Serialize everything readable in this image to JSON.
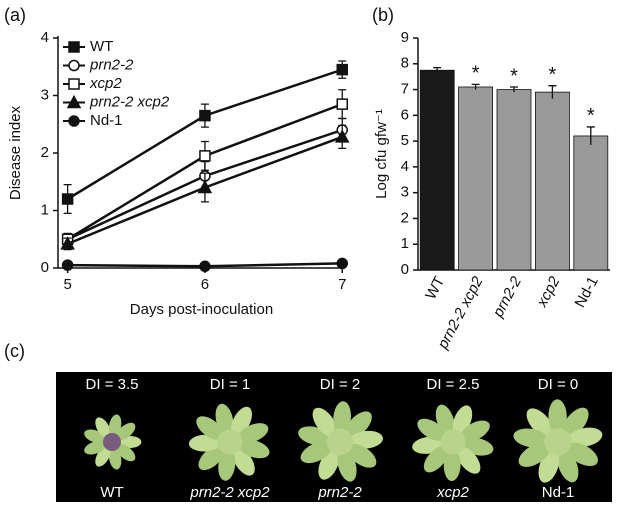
{
  "chart_data": [
    {
      "type": "line",
      "panel_label": "(a)",
      "x_label": "Days post-inoculation",
      "y_label": "Disease index",
      "x": [
        5,
        6,
        7
      ],
      "xlim": [
        4.93,
        7.02
      ],
      "xticks": [
        5,
        6,
        7
      ],
      "ylim": [
        0,
        4
      ],
      "yticks": [
        0,
        1,
        2,
        3,
        4
      ],
      "legend": "top-left",
      "series": [
        {
          "name": "WT",
          "italic": false,
          "marker": "square",
          "filled": true,
          "color": "#111111",
          "values": [
            1.2,
            2.65,
            3.45
          ],
          "errors": [
            0.25,
            0.2,
            0.15
          ]
        },
        {
          "name": "prn2-2",
          "italic": true,
          "marker": "circle",
          "filled": false,
          "color": "#111111",
          "values": [
            0.5,
            1.6,
            2.4
          ],
          "errors": [
            0.1,
            0.25,
            0.2
          ]
        },
        {
          "name": "xcp2",
          "italic": true,
          "marker": "square",
          "filled": false,
          "color": "#111111",
          "values": [
            0.5,
            1.95,
            2.85
          ],
          "errors": [
            0.1,
            0.25,
            0.25
          ]
        },
        {
          "name": "prn2-2 xcp2",
          "italic": true,
          "marker": "triangle",
          "filled": true,
          "color": "#111111",
          "values": [
            0.42,
            1.4,
            2.28
          ],
          "errors": [
            0.1,
            0.25,
            0.2
          ]
        },
        {
          "name": "Nd-1",
          "italic": false,
          "marker": "circle",
          "filled": true,
          "color": "#111111",
          "values": [
            0.05,
            0.03,
            0.08
          ],
          "errors": [
            0.03,
            0.03,
            0.03
          ]
        }
      ]
    },
    {
      "type": "bar",
      "panel_label": "(b)",
      "y_label": "Log cfu gfw⁻¹",
      "categories": [
        "WT",
        "prn2-2 xcp2",
        "prn2-2",
        "xcp2",
        "Nd-1"
      ],
      "italic_categories": [
        false,
        true,
        true,
        true,
        false
      ],
      "values": [
        7.75,
        7.1,
        7.0,
        6.9,
        5.2
      ],
      "errors": [
        0.1,
        0.1,
        0.1,
        0.25,
        0.35
      ],
      "colors": [
        "#1a1a1a",
        "#9a9a9a",
        "#9a9a9a",
        "#9a9a9a",
        "#9a9a9a"
      ],
      "significance": [
        null,
        "*",
        "*",
        "*",
        "*"
      ],
      "ylim": [
        0,
        9
      ],
      "yticks": [
        0,
        1,
        2,
        3,
        4,
        5,
        6,
        7,
        8,
        9
      ]
    }
  ],
  "photo_panel": {
    "panel_label": "(c)",
    "plants": [
      {
        "di": "DI = 3.5",
        "name": "WT",
        "italic": false
      },
      {
        "di": "DI = 1",
        "name": "prn2-2 xcp2",
        "italic": true
      },
      {
        "di": "DI = 2",
        "name": "prn2-2",
        "italic": true
      },
      {
        "di": "DI = 2.5",
        "name": "xcp2",
        "italic": true
      },
      {
        "di": "DI = 0",
        "name": "Nd-1",
        "italic": false
      }
    ]
  }
}
